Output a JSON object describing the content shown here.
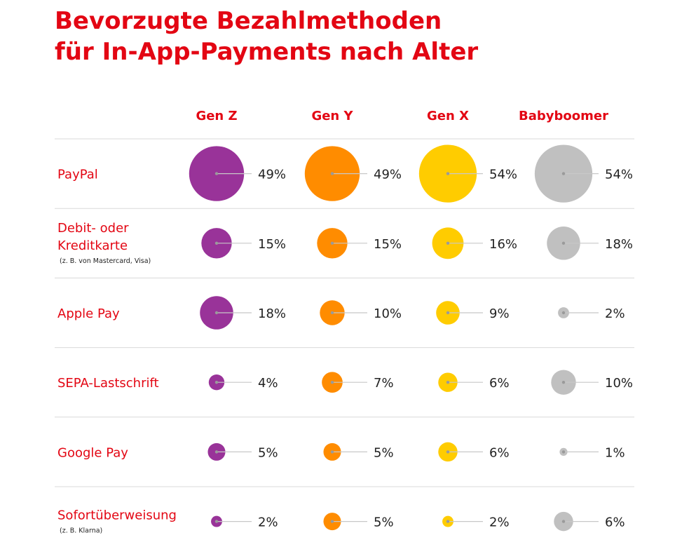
{
  "chart_data": {
    "type": "bubble-matrix",
    "title_lines": [
      "Bevorzugte Bezahlmethoden",
      "für In-App-Payments nach Alter"
    ],
    "columns": [
      {
        "name": "Gen Z",
        "color": "#993399"
      },
      {
        "name": "Gen Y",
        "color": "#ff8c00"
      },
      {
        "name": "Gen X",
        "color": "#ffcc00"
      },
      {
        "name": "Babyboomer",
        "color": "#c0c0c0"
      }
    ],
    "rows": [
      {
        "label_lines": [
          "PayPal"
        ],
        "note": "",
        "values": [
          49,
          49,
          54,
          54
        ]
      },
      {
        "label_lines": [
          "Debit- oder",
          "Kreditkarte"
        ],
        "note": "(z. B. von Mastercard, Visa)",
        "values": [
          15,
          15,
          16,
          18
        ]
      },
      {
        "label_lines": [
          "Apple Pay"
        ],
        "note": "",
        "values": [
          18,
          10,
          9,
          2
        ]
      },
      {
        "label_lines": [
          "SEPA-Lastschrift"
        ],
        "note": "",
        "values": [
          4,
          7,
          6,
          10
        ]
      },
      {
        "label_lines": [
          "Google Pay"
        ],
        "note": "",
        "values": [
          5,
          5,
          6,
          1
        ]
      },
      {
        "label_lines": [
          "Sofortüberweisung"
        ],
        "note": "(z. B. Klarna)",
        "values": [
          2,
          5,
          2,
          6
        ]
      }
    ],
    "value_suffix": "%",
    "label_color": "#e30613",
    "rule_color": "#d9d9d9",
    "leader_color": "#c8c8c8",
    "value_text_color": "#222222"
  }
}
